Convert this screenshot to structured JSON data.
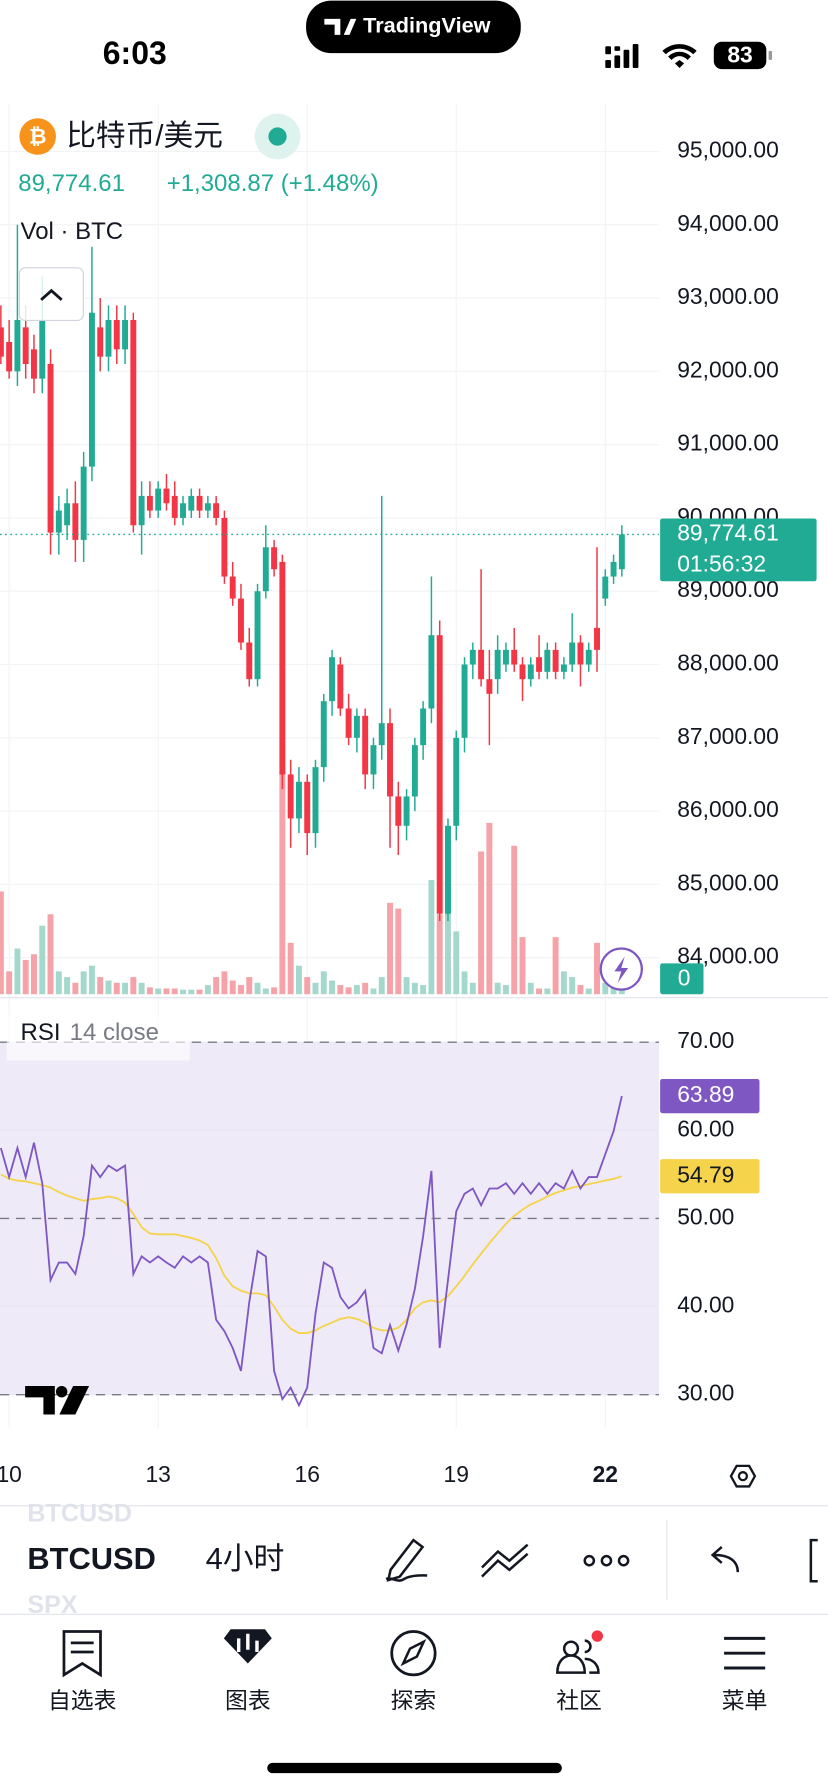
{
  "status_bar": {
    "time": "6:03",
    "battery": "83"
  },
  "app_badge": "TradingView",
  "symbol": {
    "name": "比特币/美元",
    "price": "89,774.61",
    "change": "+1,308.87 (+1.48%)"
  },
  "volume_title": "Vol · BTC",
  "chart_data": [
    {
      "type": "candlestick",
      "categories": [
        null,
        "10",
        null,
        null,
        null,
        null,
        null,
        null,
        null,
        null,
        null,
        null,
        null,
        null,
        null,
        null,
        null,
        null,
        null,
        "13",
        null,
        null,
        null,
        null,
        null,
        null,
        null,
        null,
        null,
        null,
        null,
        null,
        null,
        null,
        null,
        null,
        null,
        "16",
        null,
        null,
        null,
        null,
        null,
        null,
        null,
        null,
        null,
        null,
        null,
        null,
        null,
        null,
        null,
        null,
        null,
        "19",
        null,
        null,
        null,
        null,
        null,
        null,
        null,
        null,
        null,
        null,
        null,
        null,
        null,
        null,
        null,
        null,
        null,
        "22",
        null,
        null
      ],
      "ohlc": [
        [
          92600,
          92900,
          92100,
          92200
        ],
        [
          92400,
          92700,
          91900,
          92000
        ],
        [
          92000,
          94000,
          91800,
          92700
        ],
        [
          92600,
          92900,
          91900,
          92100
        ],
        [
          92300,
          92500,
          91700,
          91900
        ],
        [
          91900,
          93300,
          91700,
          92700
        ],
        [
          92100,
          92300,
          89500,
          89800
        ],
        [
          89800,
          90300,
          89500,
          90100
        ],
        [
          89900,
          90400,
          89700,
          90200
        ],
        [
          90200,
          90500,
          89400,
          89700
        ],
        [
          89700,
          90900,
          89400,
          90700
        ],
        [
          90700,
          93700,
          90500,
          92800
        ],
        [
          92600,
          93000,
          92000,
          92200
        ],
        [
          92200,
          92900,
          92000,
          92700
        ],
        [
          92700,
          92900,
          92100,
          92300
        ],
        [
          92300,
          92900,
          92100,
          92700
        ],
        [
          92700,
          92800,
          89800,
          89900
        ],
        [
          89900,
          90500,
          89500,
          90300
        ],
        [
          90300,
          90500,
          90000,
          90100
        ],
        [
          90100,
          90500,
          90000,
          90400
        ],
        [
          90400,
          90600,
          90100,
          90200
        ],
        [
          90300,
          90500,
          89900,
          90000
        ],
        [
          90000,
          90300,
          89900,
          90200
        ],
        [
          90100,
          90400,
          90000,
          90300
        ],
        [
          90300,
          90400,
          90000,
          90100
        ],
        [
          90100,
          90300,
          90000,
          90200
        ],
        [
          90200,
          90300,
          89900,
          90000
        ],
        [
          90000,
          90100,
          89100,
          89200
        ],
        [
          89200,
          89400,
          88800,
          88900
        ],
        [
          88900,
          89100,
          88200,
          88300
        ],
        [
          88300,
          88500,
          87700,
          87800
        ],
        [
          87800,
          89100,
          87700,
          89000
        ],
        [
          89000,
          89900,
          88900,
          89600
        ],
        [
          89600,
          89700,
          89200,
          89300
        ],
        [
          89400,
          89500,
          86300,
          86500
        ],
        [
          86500,
          86700,
          85500,
          85900
        ],
        [
          85900,
          86600,
          85700,
          86400
        ],
        [
          86400,
          86500,
          85400,
          85700
        ],
        [
          85700,
          86700,
          85500,
          86600
        ],
        [
          86600,
          87600,
          86400,
          87500
        ],
        [
          87500,
          88200,
          87300,
          88100
        ],
        [
          88000,
          88100,
          87300,
          87400
        ],
        [
          87400,
          87600,
          86900,
          87000
        ],
        [
          87000,
          87400,
          86800,
          87300
        ],
        [
          87300,
          87400,
          86300,
          86500
        ],
        [
          86500,
          87000,
          86300,
          86900
        ],
        [
          86900,
          90300,
          86700,
          87200
        ],
        [
          87200,
          87400,
          85500,
          86200
        ],
        [
          86200,
          86400,
          85400,
          85800
        ],
        [
          85800,
          86300,
          85600,
          86200
        ],
        [
          86200,
          87000,
          86000,
          86900
        ],
        [
          86900,
          87500,
          86700,
          87400
        ],
        [
          87400,
          89200,
          87200,
          88400
        ],
        [
          88400,
          88600,
          84500,
          84600
        ],
        [
          84600,
          85900,
          84500,
          85800
        ],
        [
          85800,
          87100,
          85600,
          87000
        ],
        [
          87000,
          88100,
          86800,
          88000
        ],
        [
          88000,
          88300,
          87800,
          88200
        ],
        [
          88200,
          89300,
          87700,
          87800
        ],
        [
          87800,
          88200,
          86900,
          87600
        ],
        [
          87800,
          88400,
          87600,
          88200
        ],
        [
          88000,
          88300,
          87900,
          88200
        ],
        [
          88200,
          88500,
          87900,
          88000
        ],
        [
          88000,
          88100,
          87500,
          87800
        ],
        [
          87800,
          88100,
          87700,
          88000
        ],
        [
          88100,
          88400,
          87800,
          87900
        ],
        [
          87900,
          88300,
          87800,
          88200
        ],
        [
          88200,
          88300,
          87800,
          87900
        ],
        [
          87900,
          88100,
          87800,
          88000
        ],
        [
          88000,
          88700,
          87900,
          88300
        ],
        [
          88300,
          88400,
          87700,
          88000
        ],
        [
          88000,
          88300,
          87900,
          88200
        ],
        [
          88500,
          89600,
          87900,
          88200
        ],
        [
          88900,
          89300,
          88800,
          89200
        ],
        [
          89200,
          89500,
          89100,
          89400
        ],
        [
          89300,
          89900,
          89200,
          89774.61
        ]
      ],
      "up_color": "#22ab94",
      "down_color": "#f23645",
      "ylim": [
        83480,
        95660
      ],
      "yticks": [
        {
          "value": 84000,
          "label": "84,000.00"
        },
        {
          "value": 85000,
          "label": "85,000.00"
        },
        {
          "value": 86000,
          "label": "86,000.00"
        },
        {
          "value": 87000,
          "label": "87,000.00"
        },
        {
          "value": 88000,
          "label": "88,000.00"
        },
        {
          "value": 89000,
          "label": "89,000.00"
        },
        {
          "value": 90000,
          "label": "90,000.00"
        },
        {
          "value": 91000,
          "label": "91,000.00"
        },
        {
          "value": 92000,
          "label": "92,000.00"
        },
        {
          "value": 93000,
          "label": "93,000.00"
        },
        {
          "value": 94000,
          "label": "94,000.00"
        },
        {
          "value": 95000,
          "label": "95,000.00"
        }
      ],
      "grid": true,
      "last_price": {
        "value": 89774.61,
        "label": "89,774.61"
      },
      "countdown": "01:56:32",
      "volume": {
        "values": [
          90,
          20,
          40,
          30,
          35,
          60,
          70,
          20,
          15,
          10,
          20,
          25,
          15,
          12,
          10,
          10,
          15,
          10,
          6,
          5,
          5,
          5,
          4,
          4,
          4,
          8,
          15,
          20,
          12,
          8,
          15,
          10,
          5,
          6,
          195,
          45,
          25,
          15,
          10,
          20,
          12,
          8,
          6,
          8,
          10,
          5,
          15,
          80,
          75,
          15,
          10,
          8,
          100,
          70,
          95,
          55,
          20,
          10,
          125,
          150,
          10,
          8,
          130,
          50,
          10,
          5,
          5,
          50,
          20,
          15,
          8,
          5,
          45,
          10,
          8,
          5
        ],
        "vlim": [
          0,
          200
        ],
        "up_color": "#a5d8cd",
        "down_color": "#f5a3a8",
        "label": "0"
      }
    },
    {
      "type": "line",
      "title": "RSI",
      "subtitle": "14 close",
      "series": [
        {
          "name": "RSI",
          "color": "#7e57c2",
          "values": [
            58,
            54.7,
            58,
            54.7,
            58.6,
            54,
            43,
            45,
            45,
            43.7,
            48,
            56,
            54.7,
            56,
            55.4,
            56,
            43.7,
            45.7,
            45,
            45.7,
            45,
            44.4,
            45.7,
            45,
            45.7,
            45,
            38.5,
            37.2,
            35.3,
            32.7,
            40.5,
            46.3,
            45.7,
            32.7,
            29.5,
            30.8,
            28.8,
            30.8,
            39.2,
            45,
            44.4,
            41.1,
            39.8,
            40.5,
            41.8,
            35.3,
            34.7,
            37.9,
            35,
            38,
            42,
            48,
            55.4,
            35.3,
            43,
            50.8,
            52.8,
            53.4,
            51.5,
            53.4,
            53.4,
            54,
            52.8,
            54,
            52.8,
            54,
            52.8,
            54,
            53.4,
            55.4,
            53.4,
            54.7,
            54.7,
            57.3,
            59.9,
            63.89
          ]
        },
        {
          "name": "RSI MA",
          "color": "#f5d34a",
          "values": [
            55,
            54.5,
            54.3,
            54.2,
            54,
            53.8,
            53.5,
            53,
            52.6,
            52.3,
            52,
            52.2,
            52.3,
            52.5,
            52.3,
            51.8,
            50.5,
            49,
            48.3,
            48.2,
            48.2,
            48.2,
            48,
            47.8,
            47.5,
            47,
            45.5,
            43.5,
            42.3,
            41.8,
            41.5,
            41.5,
            41.3,
            40,
            38.5,
            37.5,
            37,
            37,
            37.3,
            37.8,
            38.2,
            38.6,
            38.8,
            38.6,
            38.2,
            37.6,
            37.3,
            37.3,
            37.6,
            38.5,
            39.8,
            40.5,
            40.7,
            40.5,
            41.2,
            42.3,
            43.5,
            44.8,
            46,
            47.2,
            48.3,
            49.4,
            50.3,
            51,
            51.6,
            52,
            52.5,
            52.9,
            53.2,
            53.5,
            53.7,
            53.9,
            54.1,
            54.3,
            54.5,
            54.79
          ]
        }
      ],
      "ylim": [
        26.2,
        74.8
      ],
      "yticks": [
        {
          "value": 30,
          "label": "30.00"
        },
        {
          "value": 40,
          "label": "40.00"
        },
        {
          "value": 50,
          "label": "50.00"
        },
        {
          "value": 60,
          "label": "60.00"
        },
        {
          "value": 70,
          "label": "70.00"
        }
      ],
      "bands": {
        "upper": 70,
        "middle": 50,
        "lower": 30
      },
      "band_color": "#efeaf8"
    }
  ],
  "toolbar": {
    "symbol": "BTCUSD",
    "symbol_above": "BTCUSD",
    "symbol_below": "SPX",
    "interval": "4小时"
  },
  "tabs": [
    "自选表",
    "图表",
    "探索",
    "社区",
    "菜单"
  ]
}
